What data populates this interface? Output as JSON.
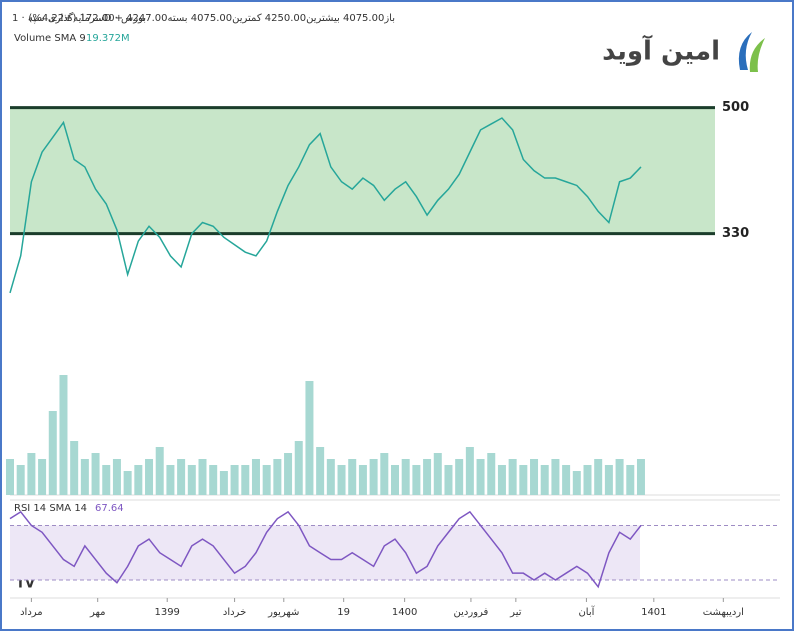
{
  "header": {
    "symbol": "سرمایه‌گذاری سپه · 1D · بورس",
    "ohlc": "باز4075.00 بیشترین4250.00 کمترین4075.00 بسته4247.00 +172.00 (+4.22%)",
    "volume_label": "Volume SMA 9",
    "volume_value": "19.372M",
    "logo": "امین آوید"
  },
  "chart_data": [
    {
      "type": "line",
      "color": "#26a69a",
      "band_color": "#c8e6c9",
      "level_color": "#1b3d2b",
      "levels": [
        500,
        330
      ],
      "x": [
        0,
        1,
        2,
        3,
        4,
        5,
        6,
        7,
        8,
        9,
        10,
        11,
        12,
        13,
        14,
        15,
        16,
        17,
        18,
        19,
        20,
        21,
        22,
        23,
        24,
        25,
        26,
        27,
        28,
        29,
        30,
        31,
        32,
        33,
        34,
        35,
        36,
        37,
        38,
        39,
        40,
        41,
        42,
        43,
        44,
        45,
        46,
        47,
        48,
        49,
        50,
        51,
        52,
        53,
        54,
        55,
        56,
        57,
        58,
        59
      ],
      "values": [
        250,
        300,
        400,
        440,
        460,
        480,
        430,
        420,
        390,
        370,
        335,
        275,
        320,
        340,
        325,
        300,
        285,
        330,
        345,
        340,
        325,
        315,
        305,
        300,
        320,
        360,
        395,
        420,
        450,
        465,
        420,
        400,
        390,
        405,
        395,
        375,
        390,
        400,
        380,
        355,
        375,
        390,
        410,
        440,
        470,
        478,
        486,
        470,
        430,
        415,
        405,
        405,
        400,
        395,
        380,
        360,
        345,
        400,
        405,
        420
      ],
      "xlim": [
        0,
        72
      ],
      "ylim": [
        200,
        625
      ],
      "xticks": [
        {
          "value": 2,
          "label": "مرداد"
        },
        {
          "value": 8.2,
          "label": "مهر"
        },
        {
          "value": 14.7,
          "label": "1399"
        },
        {
          "value": 21,
          "label": "خرداد"
        },
        {
          "value": 25.6,
          "label": "شهریور"
        },
        {
          "value": 31.2,
          "label": "19"
        },
        {
          "value": 36.9,
          "label": "1400"
        },
        {
          "value": 43.1,
          "label": "فروردین"
        },
        {
          "value": 47.3,
          "label": "تیر"
        },
        {
          "value": 53.9,
          "label": "آبان"
        },
        {
          "value": 60.2,
          "label": "1401"
        },
        {
          "value": 66.7,
          "label": "اردیبهشت"
        }
      ]
    },
    {
      "type": "bar",
      "color": "#a7d8d2",
      "values": [
        30,
        25,
        35,
        30,
        70,
        100,
        45,
        30,
        35,
        25,
        30,
        20,
        25,
        30,
        40,
        25,
        30,
        25,
        30,
        25,
        20,
        25,
        25,
        30,
        25,
        30,
        35,
        45,
        95,
        40,
        30,
        25,
        30,
        25,
        30,
        35,
        25,
        30,
        25,
        30,
        35,
        25,
        30,
        40,
        30,
        35,
        25,
        30,
        25,
        30,
        25,
        30,
        25,
        20,
        25,
        30,
        25,
        30,
        25,
        30
      ],
      "ylim": [
        0,
        100
      ]
    },
    {
      "type": "line",
      "title": "RSI 14 SMA 14",
      "value_label": "67.64",
      "color": "#7e57c2",
      "band_color": "#ede7f6",
      "bands": [
        70,
        30
      ],
      "values": [
        75,
        80,
        70,
        65,
        55,
        45,
        40,
        55,
        45,
        35,
        28,
        40,
        55,
        60,
        50,
        45,
        40,
        55,
        60,
        55,
        45,
        35,
        40,
        50,
        65,
        75,
        80,
        70,
        55,
        50,
        45,
        45,
        50,
        45,
        40,
        55,
        60,
        50,
        35,
        40,
        55,
        65,
        75,
        80,
        70,
        60,
        50,
        35,
        35,
        30,
        35,
        30,
        35,
        40,
        35,
        25,
        50,
        65,
        60,
        70
      ],
      "ylim": [
        19,
        85
      ]
    }
  ]
}
